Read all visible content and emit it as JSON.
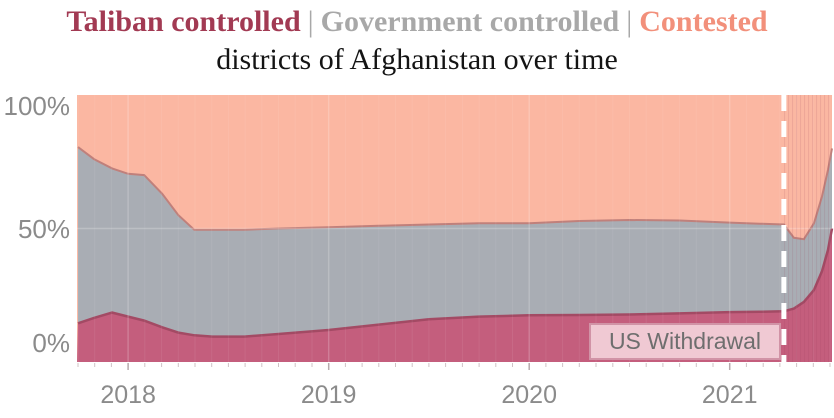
{
  "title": {
    "line1": [
      {
        "label": "Taliban controlled",
        "color": "#a23a53"
      },
      {
        "label": "Government controlled",
        "color": "#a8a8a8"
      },
      {
        "label": "Contested",
        "color": "#f2907b"
      }
    ],
    "separator": "|",
    "line2": "districts of Afghanistan over time"
  },
  "colors": {
    "background": "#ffffff",
    "axis_text": "#8b8b8b",
    "gridline": "#ffffff"
  },
  "chart_data": {
    "type": "area",
    "stacked": true,
    "units": "percent of districts",
    "title": "Taliban controlled | Government controlled | Contested districts of Afghanistan over time",
    "xlabel": "",
    "ylabel": "",
    "xlim": [
      2017.745,
      2021.51
    ],
    "ylim": [
      0,
      100
    ],
    "grid": "faint white year gridlines and 50% line over areas",
    "legend_position": "in-title",
    "x": [
      2017.75,
      2017.83,
      2017.92,
      2018.0,
      2018.08,
      2018.17,
      2018.25,
      2018.33,
      2018.42,
      2018.58,
      2018.75,
      2019.0,
      2019.25,
      2019.5,
      2019.75,
      2020.0,
      2020.25,
      2020.5,
      2020.75,
      2021.0,
      2021.15,
      2021.27,
      2021.32,
      2021.37,
      2021.42,
      2021.46,
      2021.49,
      2021.51
    ],
    "series": [
      {
        "name": "Taliban controlled",
        "color": "#c45e7d",
        "edge_color": "#a34a64",
        "values": [
          14.5,
          16.5,
          18.5,
          17,
          15.5,
          13,
          11,
          10,
          9.5,
          9.5,
          10.5,
          12,
          14,
          16,
          17,
          17.5,
          17.6,
          17.8,
          18.2,
          18.7,
          18.8,
          19,
          20,
          22.5,
          27,
          34,
          42,
          50
        ]
      },
      {
        "name": "Government controlled",
        "color": "#a9adb4",
        "edge_color": "#c0807b",
        "values": [
          66,
          59.5,
          54,
          53.5,
          54.5,
          50,
          44,
          39.5,
          40,
          40,
          39.5,
          38.5,
          37,
          35.5,
          35,
          34.5,
          35.2,
          35.4,
          34.8,
          33.5,
          33,
          32.5,
          26.5,
          23.5,
          25,
          28,
          30,
          30
        ]
      },
      {
        "name": "Contested",
        "color": "#fbb7a2",
        "edge_color": "#fbb7a2",
        "values": [
          19.5,
          24,
          27.5,
          29.5,
          30,
          37,
          45,
          50.5,
          50.5,
          50.5,
          50,
          49.5,
          49,
          48.5,
          48,
          48,
          47.2,
          46.8,
          47,
          47.8,
          48.2,
          48.5,
          53.5,
          54,
          48,
          38,
          28,
          20
        ]
      }
    ],
    "x_ticks": [
      {
        "value": 2018,
        "label": "2018"
      },
      {
        "value": 2019,
        "label": "2019"
      },
      {
        "value": 2020,
        "label": "2020"
      },
      {
        "value": 2021,
        "label": "2021"
      }
    ],
    "y_ticks": [
      {
        "value": 100,
        "label": "100%"
      },
      {
        "value": 50,
        "label": "50%"
      },
      {
        "value": 0,
        "label": "0%"
      }
    ],
    "annotations": [
      {
        "type": "vline",
        "x": 2021.27,
        "label": "US Withdrawal",
        "line_color": "#ffffff",
        "line_style": "dashed",
        "label_bg": "#f0c9d3",
        "label_border": "#d193a6",
        "label_text_color": "#6e6e6e"
      }
    ]
  }
}
